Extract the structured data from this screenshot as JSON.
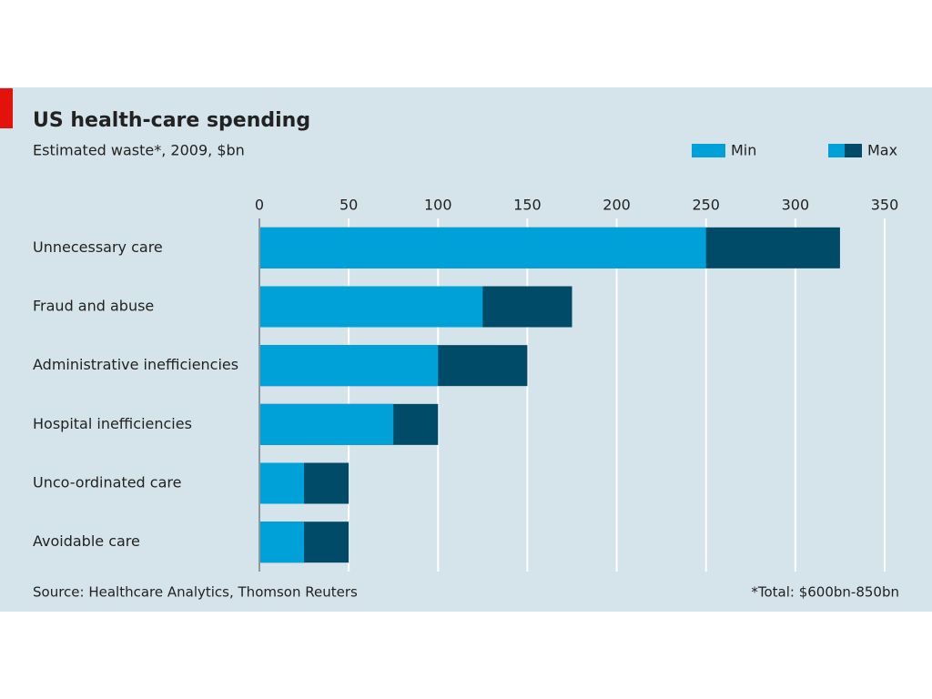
{
  "chart_data": {
    "type": "bar",
    "orientation": "horizontal",
    "title": "US health-care spending",
    "subtitle": "Estimated waste*, 2009, $bn",
    "categories": [
      "Unnecessary care",
      "Fraud and abuse",
      "Administrative inefficiencies",
      "Hospital inefficiencies",
      "Unco-ordinated care",
      "Avoidable care"
    ],
    "series": [
      {
        "name": "Min",
        "color": "#00a1d9",
        "values": [
          250,
          125,
          100,
          75,
          25,
          25
        ]
      },
      {
        "name": "Max",
        "color": "#004b67",
        "values": [
          325,
          175,
          150,
          100,
          50,
          50
        ]
      }
    ],
    "xlim": [
      0,
      350
    ],
    "xticks": [
      0,
      50,
      100,
      150,
      200,
      250,
      300,
      350
    ],
    "grid": true,
    "source": "Source: Healthcare Analytics, Thomson Reuters",
    "note": "*Total: $600bn-850bn"
  }
}
